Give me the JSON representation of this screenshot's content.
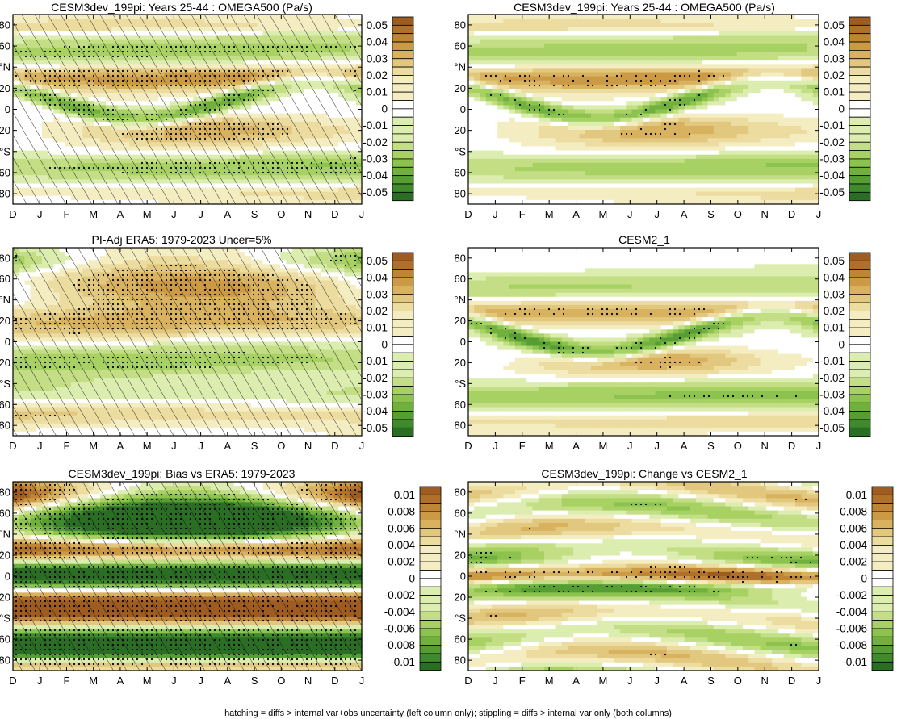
{
  "figure_note": "hatching = diffs > internal var+obs uncertainty (left column only); stippling = diffs > internal var only (both columns)",
  "colors": {
    "green": [
      "#2a6e24",
      "#3e8a2d",
      "#569e34",
      "#70b13e",
      "#8cc24e",
      "#a8d163",
      "#c3de84",
      "#dcedb0"
    ],
    "zero": "#ffffff",
    "brown": [
      "#f5edc2",
      "#ecdca0",
      "#e2c87e",
      "#d8b25e",
      "#cc9a45",
      "#bf8535",
      "#b07029",
      "#9e5c20"
    ]
  },
  "chart_data": [
    {
      "type": "heatmap",
      "id": "p0",
      "title": "CESM3dev_199pi: Years 25-44 : OMEGA500 (Pa/s)",
      "x_ticks": [
        "D",
        "J",
        "F",
        "M",
        "A",
        "M",
        "J",
        "J",
        "A",
        "S",
        "O",
        "N",
        "D",
        "J"
      ],
      "y_ticks": [
        "80",
        "60",
        "°N",
        "20",
        "0",
        "20",
        "°S",
        "60",
        "80"
      ],
      "colorbar_levels": [
        "0.05",
        "0.04",
        "0.03",
        "0.02",
        "0.01",
        "0",
        "-0.01",
        "-0.02",
        "-0.03",
        "-0.04",
        "-0.05"
      ],
      "field": "model",
      "hatching": "mostly",
      "stipple": "dense"
    },
    {
      "type": "heatmap",
      "id": "p1",
      "title": "CESM3dev_199pi: Years 25-44 : OMEGA500 (Pa/s)",
      "x_ticks": [
        "D",
        "J",
        "F",
        "M",
        "A",
        "M",
        "J",
        "J",
        "A",
        "S",
        "O",
        "N",
        "D",
        "J"
      ],
      "y_ticks": [
        "80",
        "60",
        "°N",
        "20",
        "0",
        "20",
        "°S",
        "60",
        "80"
      ],
      "colorbar_levels": [
        "0.05",
        "0.04",
        "0.03",
        "0.02",
        "0.01",
        "0",
        "-0.01",
        "-0.02",
        "-0.03",
        "-0.04",
        "-0.05"
      ],
      "field": "model",
      "hatching": "none",
      "stipple": "sparse"
    },
    {
      "type": "heatmap",
      "id": "p2",
      "title": "PI-Adj ERA5: 1979-2023 Uncer=5%",
      "x_ticks": [
        "D",
        "J",
        "F",
        "M",
        "A",
        "M",
        "J",
        "J",
        "A",
        "S",
        "O",
        "N",
        "D",
        "J"
      ],
      "y_ticks": [
        "80",
        "60",
        "°N",
        "20",
        "0",
        "20",
        "°S",
        "60",
        "80"
      ],
      "colorbar_levels": [
        "0.05",
        "0.04",
        "0.03",
        "0.02",
        "0.01",
        "0",
        "-0.01",
        "-0.02",
        "-0.03",
        "-0.04",
        "-0.05"
      ],
      "field": "obs",
      "hatching": "mostly",
      "stipple": "dense"
    },
    {
      "type": "heatmap",
      "id": "p3",
      "title": "CESM2_1",
      "x_ticks": [
        "D",
        "J",
        "F",
        "M",
        "A",
        "M",
        "J",
        "J",
        "A",
        "S",
        "O",
        "N",
        "D",
        "J"
      ],
      "y_ticks": [
        "80",
        "60",
        "°N",
        "20",
        "0",
        "20",
        "°S",
        "60",
        "80"
      ],
      "colorbar_levels": [
        "0.05",
        "0.04",
        "0.03",
        "0.02",
        "0.01",
        "0",
        "-0.01",
        "-0.02",
        "-0.03",
        "-0.04",
        "-0.05"
      ],
      "field": "model2",
      "hatching": "none",
      "stipple": "sparse"
    },
    {
      "type": "heatmap",
      "id": "p4",
      "title": "CESM3dev_199pi: Bias vs ERA5: 1979-2023",
      "x_ticks": [
        "D",
        "J",
        "F",
        "M",
        "A",
        "M",
        "J",
        "J",
        "A",
        "S",
        "O",
        "N",
        "D",
        "J"
      ],
      "y_ticks": [
        "80",
        "60",
        "°N",
        "20",
        "0",
        "20",
        "°S",
        "60",
        "80"
      ],
      "colorbar_levels": [
        "0.01",
        "0.008",
        "0.006",
        "0.004",
        "0.002",
        "0",
        "-0.002",
        "-0.004",
        "-0.006",
        "-0.008",
        "-0.01"
      ],
      "field": "bias",
      "hatching": "mostly",
      "stipple": "dense"
    },
    {
      "type": "heatmap",
      "id": "p5",
      "title": "CESM3dev_199pi: Change vs CESM2_1",
      "x_ticks": [
        "D",
        "J",
        "F",
        "M",
        "A",
        "M",
        "J",
        "J",
        "A",
        "S",
        "O",
        "N",
        "D",
        "J"
      ],
      "y_ticks": [
        "80",
        "60",
        "°N",
        "20",
        "0",
        "20",
        "°S",
        "60",
        "80"
      ],
      "colorbar_levels": [
        "0.01",
        "0.008",
        "0.006",
        "0.004",
        "0.002",
        "0",
        "-0.002",
        "-0.004",
        "-0.006",
        "-0.008",
        "-0.01"
      ],
      "field": "change",
      "hatching": "none",
      "stipple": "sparse"
    }
  ]
}
